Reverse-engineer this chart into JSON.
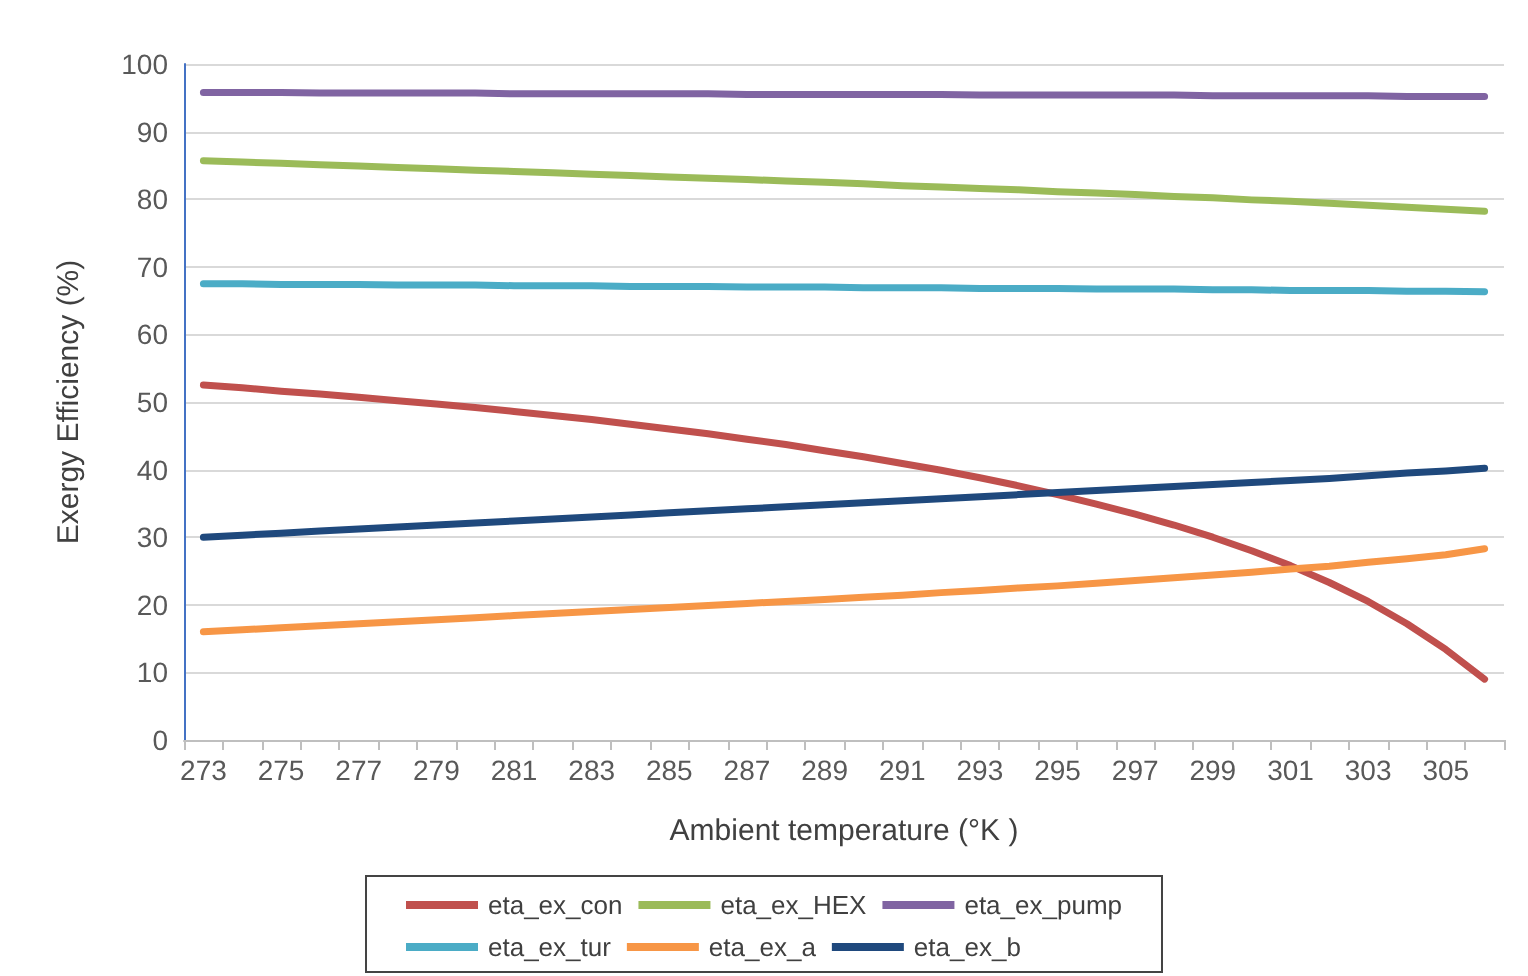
{
  "chart_data": {
    "type": "line",
    "xlabel": "Ambient temperature (°K )",
    "ylabel": "Exergy Efficiency (%)",
    "categories": [
      "273",
      null,
      "275",
      null,
      "277",
      null,
      "279",
      null,
      "281",
      null,
      "283",
      null,
      "285",
      null,
      "287",
      null,
      "289",
      null,
      "291",
      null,
      "293",
      null,
      "295",
      null,
      "297",
      null,
      "299",
      null,
      "301",
      null,
      "303",
      null,
      "305",
      null
    ],
    "series": [
      {
        "name": "eta_ex_con",
        "color": "#c0504d",
        "values": [
          52.5,
          52.1,
          51.6,
          51.2,
          50.7,
          50.2,
          49.7,
          49.2,
          48.6,
          48.0,
          47.4,
          46.7,
          46.0,
          45.3,
          44.5,
          43.7,
          42.8,
          41.9,
          40.9,
          39.9,
          38.8,
          37.6,
          36.3,
          34.9,
          33.4,
          31.8,
          30.0,
          28.0,
          25.8,
          23.3,
          20.5,
          17.2,
          13.4,
          9.0
        ]
      },
      {
        "name": "eta_ex_HEX",
        "color": "#9bbb59",
        "values": [
          85.7,
          85.5,
          85.3,
          85.1,
          84.9,
          84.7,
          84.5,
          84.3,
          84.1,
          83.9,
          83.7,
          83.5,
          83.3,
          83.1,
          82.9,
          82.7,
          82.5,
          82.3,
          82.0,
          81.8,
          81.6,
          81.4,
          81.1,
          80.9,
          80.7,
          80.4,
          80.2,
          79.9,
          79.7,
          79.4,
          79.1,
          78.8,
          78.5,
          78.2
        ]
      },
      {
        "name": "eta_ex_pump",
        "color": "#8064a2",
        "values": [
          95.8,
          95.8,
          95.8,
          95.7,
          95.7,
          95.7,
          95.7,
          95.7,
          95.6,
          95.6,
          95.6,
          95.6,
          95.6,
          95.6,
          95.5,
          95.5,
          95.5,
          95.5,
          95.5,
          95.5,
          95.4,
          95.4,
          95.4,
          95.4,
          95.4,
          95.4,
          95.3,
          95.3,
          95.3,
          95.3,
          95.3,
          95.2,
          95.2,
          95.2
        ]
      },
      {
        "name": "eta_ex_tur",
        "color": "#4bacc6",
        "values": [
          67.5,
          67.5,
          67.4,
          67.4,
          67.4,
          67.3,
          67.3,
          67.3,
          67.2,
          67.2,
          67.2,
          67.1,
          67.1,
          67.1,
          67.0,
          67.0,
          67.0,
          66.9,
          66.9,
          66.9,
          66.8,
          66.8,
          66.8,
          66.7,
          66.7,
          66.7,
          66.6,
          66.6,
          66.5,
          66.5,
          66.5,
          66.4,
          66.4,
          66.3
        ]
      },
      {
        "name": "eta_ex_a",
        "color": "#f79646",
        "values": [
          16.0,
          16.3,
          16.6,
          16.9,
          17.2,
          17.5,
          17.8,
          18.1,
          18.4,
          18.7,
          19.0,
          19.3,
          19.6,
          19.9,
          20.2,
          20.5,
          20.8,
          21.1,
          21.4,
          21.8,
          22.1,
          22.5,
          22.8,
          23.2,
          23.6,
          24.0,
          24.4,
          24.8,
          25.3,
          25.7,
          26.3,
          26.8,
          27.4,
          28.3
        ]
      },
      {
        "name": "eta_ex_b",
        "color": "#1f497d",
        "values": [
          30.0,
          30.3,
          30.6,
          30.9,
          31.2,
          31.5,
          31.8,
          32.1,
          32.4,
          32.7,
          33.0,
          33.3,
          33.6,
          33.9,
          34.2,
          34.5,
          34.8,
          35.1,
          35.4,
          35.7,
          36.0,
          36.3,
          36.6,
          36.9,
          37.2,
          37.5,
          37.8,
          38.1,
          38.4,
          38.7,
          39.1,
          39.5,
          39.8,
          40.2
        ]
      }
    ],
    "ylim": [
      0,
      100
    ],
    "yticks": [
      0,
      10,
      20,
      30,
      40,
      50,
      60,
      70,
      80,
      90,
      100
    ],
    "grid": "y",
    "legend": "bottom",
    "marker": "none",
    "line_style": "solid"
  }
}
